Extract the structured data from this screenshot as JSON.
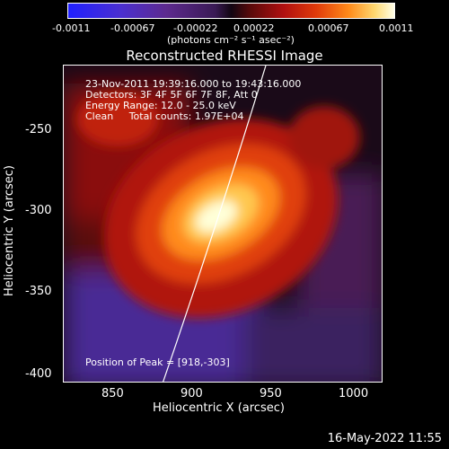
{
  "colorbar": {
    "ticks": [
      "-0.0011",
      "-0.00067",
      "-0.00022",
      "0.00022",
      "0.00067",
      "0.0011"
    ],
    "units_label": "(photons cm⁻² s⁻¹ asec⁻²)"
  },
  "title": "Reconstructed RHESSI Image",
  "annotations": {
    "time": "23-Nov-2011 19:39:16.000 to 19:43:16.000",
    "detectors": "Detectors: 3F 4F 5F 6F 7F 8F, Att 0",
    "energy": "Energy Range: 12.0 - 25.0 keV",
    "clean": "Clean     Total counts: 1.97E+04",
    "peak": "Position of Peak = [918,-303]"
  },
  "axes": {
    "xlabel": "Heliocentric X (arcsec)",
    "ylabel": "Heliocentric Y (arcsec)",
    "xticks": [
      "850",
      "900",
      "950",
      "1000"
    ],
    "yticks": [
      "-250",
      "-300",
      "-350",
      "-400"
    ]
  },
  "timestamp": "16-May-2022 11:55"
}
